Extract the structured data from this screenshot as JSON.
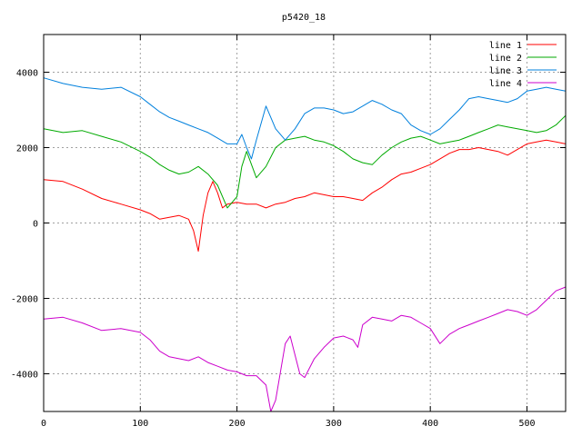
{
  "chart_data": {
    "type": "line",
    "title": "p5420_18",
    "xlabel": "",
    "ylabel": "",
    "xlim": [
      0,
      540
    ],
    "ylim": [
      -5000,
      5000
    ],
    "x_ticks": [
      0,
      100,
      200,
      300,
      400,
      500
    ],
    "y_ticks": [
      -4000,
      -2000,
      0,
      2000,
      4000
    ],
    "grid": true,
    "legend_position": "top-right",
    "series": [
      {
        "name": "line 1",
        "color": "#ff0000",
        "x": [
          0,
          20,
          40,
          60,
          80,
          100,
          110,
          120,
          130,
          140,
          150,
          155,
          160,
          165,
          170,
          175,
          180,
          185,
          190,
          200,
          210,
          220,
          230,
          240,
          250,
          260,
          270,
          280,
          290,
          300,
          310,
          320,
          330,
          340,
          350,
          360,
          370,
          380,
          390,
          400,
          410,
          420,
          430,
          440,
          450,
          460,
          470,
          480,
          490,
          500,
          510,
          520,
          530,
          540
        ],
        "y": [
          1150,
          1100,
          900,
          650,
          500,
          350,
          250,
          100,
          150,
          200,
          100,
          -200,
          -750,
          200,
          800,
          1100,
          800,
          400,
          500,
          550,
          500,
          500,
          400,
          500,
          550,
          650,
          700,
          800,
          750,
          700,
          700,
          650,
          600,
          800,
          950,
          1150,
          1300,
          1350,
          1450,
          1550,
          1700,
          1850,
          1950,
          1950,
          2000,
          1950,
          1900,
          1800,
          1950,
          2100,
          2150,
          2200,
          2150,
          2100
        ]
      },
      {
        "name": "line 2",
        "color": "#00aa00",
        "x": [
          0,
          20,
          40,
          60,
          80,
          100,
          110,
          120,
          130,
          140,
          150,
          160,
          170,
          180,
          190,
          200,
          205,
          210,
          220,
          230,
          240,
          250,
          260,
          270,
          280,
          290,
          300,
          310,
          320,
          330,
          340,
          350,
          360,
          370,
          380,
          390,
          400,
          410,
          420,
          430,
          440,
          450,
          460,
          470,
          480,
          490,
          500,
          510,
          520,
          530,
          540
        ],
        "y": [
          2500,
          2400,
          2450,
          2300,
          2150,
          1900,
          1750,
          1550,
          1400,
          1300,
          1350,
          1500,
          1300,
          1000,
          400,
          700,
          1500,
          1900,
          1200,
          1500,
          2000,
          2200,
          2250,
          2300,
          2200,
          2150,
          2050,
          1900,
          1700,
          1600,
          1550,
          1800,
          2000,
          2150,
          2250,
          2300,
          2200,
          2100,
          2150,
          2200,
          2300,
          2400,
          2500,
          2600,
          2550,
          2500,
          2450,
          2400,
          2450,
          2600,
          2850
        ]
      },
      {
        "name": "line 3",
        "color": "#0080dd",
        "x": [
          0,
          20,
          40,
          60,
          80,
          100,
          110,
          120,
          130,
          140,
          150,
          160,
          170,
          180,
          190,
          200,
          205,
          210,
          215,
          220,
          230,
          240,
          250,
          260,
          270,
          280,
          290,
          300,
          310,
          320,
          330,
          340,
          350,
          360,
          370,
          380,
          390,
          400,
          410,
          420,
          430,
          440,
          450,
          460,
          470,
          480,
          490,
          500,
          510,
          520,
          530,
          540
        ],
        "y": [
          3850,
          3700,
          3600,
          3550,
          3600,
          3350,
          3150,
          2950,
          2800,
          2700,
          2600,
          2500,
          2400,
          2250,
          2100,
          2100,
          2350,
          2000,
          1700,
          2200,
          3100,
          2500,
          2200,
          2500,
          2900,
          3050,
          3050,
          3000,
          2900,
          2950,
          3100,
          3250,
          3150,
          3000,
          2900,
          2600,
          2450,
          2350,
          2500,
          2750,
          3000,
          3300,
          3350,
          3300,
          3250,
          3200,
          3300,
          3500,
          3550,
          3600,
          3550,
          3500
        ]
      },
      {
        "name": "line 4",
        "color": "#cc00cc",
        "x": [
          0,
          20,
          40,
          60,
          80,
          100,
          110,
          120,
          130,
          140,
          150,
          160,
          170,
          180,
          190,
          200,
          210,
          220,
          230,
          235,
          240,
          250,
          255,
          260,
          265,
          270,
          280,
          290,
          300,
          310,
          320,
          325,
          330,
          340,
          350,
          360,
          370,
          380,
          390,
          400,
          410,
          420,
          430,
          440,
          450,
          460,
          470,
          480,
          490,
          500,
          510,
          520,
          530,
          540
        ],
        "y": [
          -2550,
          -2500,
          -2650,
          -2850,
          -2800,
          -2900,
          -3100,
          -3400,
          -3550,
          -3600,
          -3650,
          -3550,
          -3700,
          -3800,
          -3900,
          -3950,
          -4050,
          -4050,
          -4300,
          -5000,
          -4700,
          -3200,
          -3000,
          -3500,
          -4000,
          -4100,
          -3600,
          -3300,
          -3050,
          -3000,
          -3100,
          -3300,
          -2700,
          -2500,
          -2550,
          -2600,
          -2450,
          -2500,
          -2650,
          -2800,
          -3200,
          -2950,
          -2800,
          -2700,
          -2600,
          -2500,
          -2400,
          -2300,
          -2350,
          -2450,
          -2300,
          -2050,
          -1800,
          -1700
        ]
      }
    ]
  }
}
